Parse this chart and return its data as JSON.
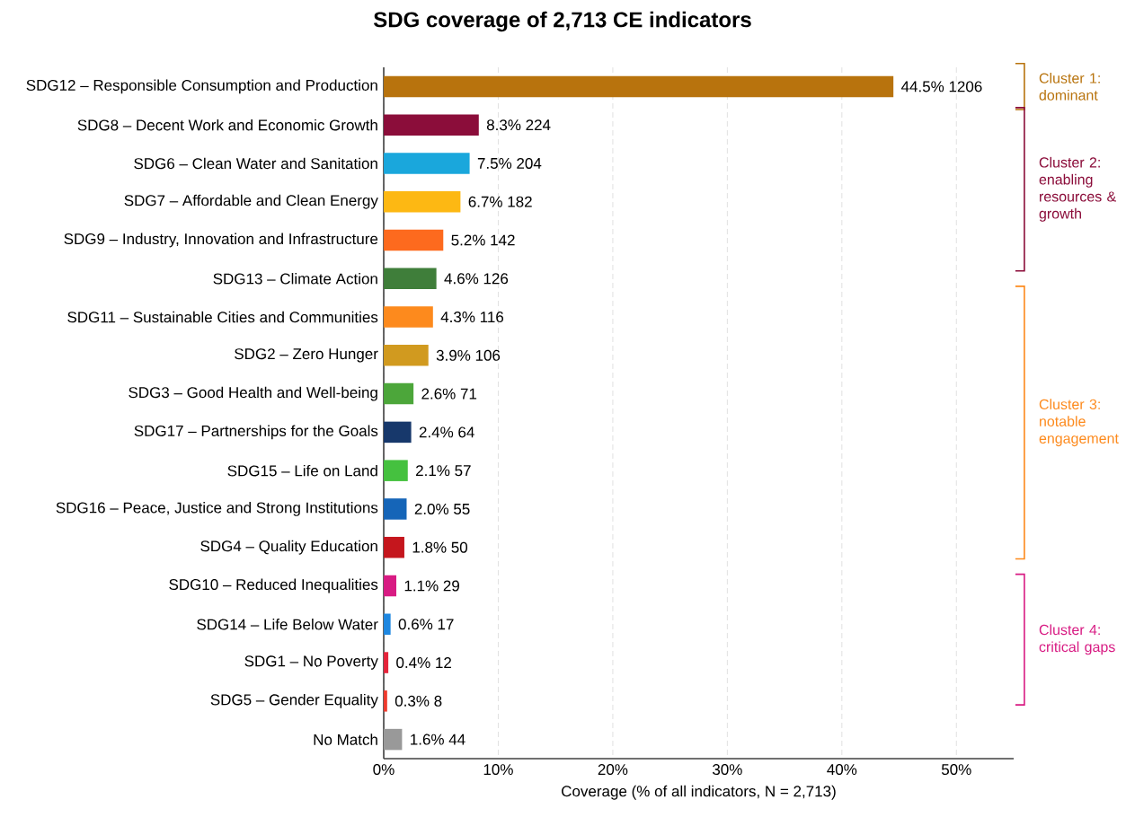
{
  "chart_data": {
    "type": "bar",
    "orientation": "horizontal",
    "title": "SDG coverage of 2,713 CE indicators",
    "xlabel": "Coverage (% of all indicators, N = 2,713)",
    "categories": [
      "SDG12 – Responsible Consumption and Production",
      "SDG8 – Decent Work and Economic Growth",
      "SDG6 – Clean Water and Sanitation",
      "SDG7 – Affordable and Clean Energy",
      "SDG9 – Industry, Innovation and Infrastructure",
      "SDG13 – Climate Action",
      "SDG11 – Sustainable Cities and Communities",
      "SDG2 – Zero Hunger",
      "SDG3 – Good Health and Well-being",
      "SDG17 – Partnerships for the Goals",
      "SDG15 – Life on Land",
      "SDG16 – Peace, Justice and Strong Institutions",
      "SDG4 – Quality Education",
      "SDG10 – Reduced Inequalities",
      "SDG14 – Life Below Water",
      "SDG1 – No Poverty",
      "SDG5 – Gender Equality",
      "No Match"
    ],
    "values": [
      44.5,
      8.3,
      7.5,
      6.7,
      5.2,
      4.6,
      4.3,
      3.9,
      2.6,
      2.4,
      2.1,
      2.0,
      1.8,
      1.1,
      0.6,
      0.4,
      0.3,
      1.6
    ],
    "value_labels": [
      "44.5%   1206",
      "8.3%   224",
      "7.5%   204",
      "6.7%   182",
      "5.2%   142",
      "4.6%   126",
      "4.3%   116",
      "3.9%   106",
      "2.6%   71",
      "2.4%   64",
      "2.1%   57",
      "2.0%   55",
      "1.8%   50",
      "1.1%   29",
      "0.6%   17",
      "0.4%   12",
      "0.3%   8",
      "1.6%   44"
    ],
    "colors": [
      "#b8730d",
      "#8b0d3a",
      "#1aa7dc",
      "#fdb813",
      "#fd6a1e",
      "#3f7e3a",
      "#fd8a1d",
      "#d19a1f",
      "#4ca63a",
      "#17386b",
      "#45c13f",
      "#1565b8",
      "#c5161d",
      "#d81b83",
      "#1e87e0",
      "#e5243b",
      "#ef3a2d",
      "#999999"
    ],
    "xlim": [
      0,
      55
    ],
    "xticks": [
      {
        "value": 0,
        "label": "0%"
      },
      {
        "value": 10,
        "label": "10%"
      },
      {
        "value": 20,
        "label": "20%"
      },
      {
        "value": 30,
        "label": "30%"
      },
      {
        "value": 40,
        "label": "40%"
      },
      {
        "value": 50,
        "label": "50%"
      }
    ],
    "grid": "x",
    "annotations": [
      "Cluster 1: dominant",
      "Cluster 2: enabling resources & growth",
      "Cluster 3: notable engagement",
      "Cluster 4: critical gaps"
    ]
  }
}
